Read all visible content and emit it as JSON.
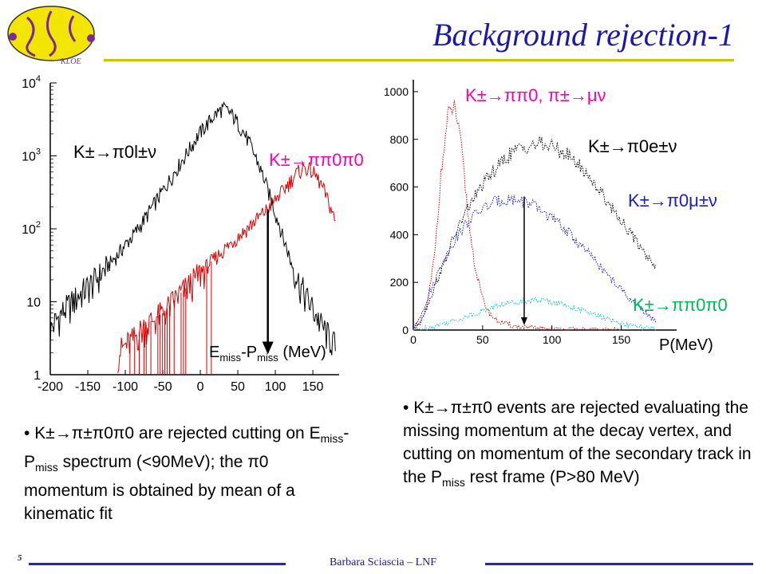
{
  "slide": {
    "title": "Background rejection-1",
    "page_number": "5",
    "author": "Barbara Sciascia – LNF",
    "logo_text": "KLOE"
  },
  "colors": {
    "title": "#1a1aa6",
    "accent_rule": "#c8c800",
    "footer_rule": "#2a2aa0",
    "black_series": "#000000",
    "red_series": "#dd0000",
    "blue_series": "#1a1ad0",
    "cyan_series": "#00cccc",
    "magenta_label": "#ff00aa"
  },
  "chart_data": [
    {
      "type": "line",
      "xlabel": "E_miss-P_miss (MeV)",
      "xlabel_main": "E",
      "xlabel_sub1": "miss",
      "xlabel_mid": "-P",
      "xlabel_sub2": "miss",
      "xlabel_unit": " (MeV)",
      "ylabel": "",
      "yscale": "log",
      "xlim": [
        -200,
        185
      ],
      "ylim": [
        1,
        10000
      ],
      "x_ticks": [
        "-200",
        "-150",
        "-100",
        "-50",
        "0",
        "50",
        "100",
        "150"
      ],
      "y_ticks": [
        {
          "base": "1",
          "exp": ""
        },
        {
          "base": "10",
          "exp": ""
        },
        {
          "base": "10",
          "exp": "2"
        },
        {
          "base": "10",
          "exp": "3"
        },
        {
          "base": "10",
          "exp": "4"
        }
      ],
      "series": [
        {
          "name": "K±→π0l±ν",
          "color": "#000000",
          "x": [
            -200,
            -190,
            -180,
            -170,
            -160,
            -150,
            -140,
            -130,
            -120,
            -110,
            -100,
            -90,
            -80,
            -70,
            -60,
            -50,
            -40,
            -30,
            -20,
            -10,
            0,
            10,
            20,
            30,
            40,
            50,
            60,
            70,
            80,
            90,
            100,
            110,
            120,
            130,
            140,
            150,
            160,
            170,
            180
          ],
          "y": [
            4,
            6,
            8,
            10,
            13,
            16,
            20,
            26,
            34,
            44,
            60,
            80,
            110,
            160,
            230,
            330,
            480,
            700,
            1000,
            1450,
            2100,
            2800,
            3700,
            4500,
            3900,
            2800,
            1900,
            1150,
            650,
            330,
            160,
            75,
            36,
            20,
            12,
            8,
            5,
            3.5,
            2.5
          ]
        },
        {
          "name": "K±→ππ0π0",
          "color": "#dd0000",
          "x": [
            -110,
            -100,
            -90,
            -80,
            -70,
            -60,
            -50,
            -40,
            -30,
            -20,
            -10,
            0,
            10,
            20,
            30,
            40,
            50,
            60,
            70,
            80,
            90,
            100,
            110,
            120,
            130,
            140,
            150,
            160,
            170,
            180
          ],
          "y": [
            2,
            2.5,
            3,
            4,
            5,
            6,
            7,
            9,
            12,
            15,
            19,
            25,
            32,
            40,
            50,
            62,
            78,
            95,
            120,
            150,
            190,
            250,
            330,
            450,
            600,
            700,
            600,
            420,
            240,
            120
          ]
        }
      ],
      "annotations": [
        {
          "text": "K±→π0l±ν"
        },
        {
          "text": "K±→ππ0π0"
        }
      ],
      "cut_arrow": {
        "x": 90,
        "y_from": 180,
        "y_to": 2
      }
    },
    {
      "type": "line",
      "xlabel": "P(MeV)",
      "ylabel": "",
      "xlim": [
        0,
        190
      ],
      "ylim": [
        0,
        1050
      ],
      "x_ticks": [
        "0",
        "50",
        "100",
        "150"
      ],
      "y_ticks": [
        "0",
        "200",
        "400",
        "600",
        "800",
        "1000"
      ],
      "series": [
        {
          "name": "K±→ππ0, π±→μν",
          "color": "#dd0000",
          "x": [
            0,
            5,
            10,
            15,
            20,
            25,
            30,
            35,
            40,
            45,
            50,
            55,
            60,
            70,
            80,
            100,
            120,
            150
          ],
          "y": [
            0,
            20,
            100,
            300,
            650,
            900,
            940,
            750,
            450,
            250,
            130,
            70,
            40,
            20,
            10,
            5,
            2,
            0
          ]
        },
        {
          "name": "K±→π0e±ν",
          "color": "#000000",
          "x": [
            0,
            5,
            10,
            20,
            30,
            40,
            50,
            60,
            70,
            80,
            90,
            100,
            110,
            120,
            130,
            140,
            150,
            160,
            170,
            175
          ],
          "y": [
            0,
            40,
            100,
            250,
            400,
            520,
            610,
            680,
            740,
            770,
            780,
            770,
            740,
            690,
            620,
            540,
            460,
            380,
            300,
            270
          ]
        },
        {
          "name": "K±→π0μ±ν",
          "color": "#1a1ad0",
          "x": [
            0,
            5,
            10,
            20,
            30,
            40,
            50,
            60,
            70,
            80,
            90,
            100,
            110,
            120,
            130,
            140,
            150,
            160,
            170,
            175
          ],
          "y": [
            0,
            60,
            130,
            270,
            380,
            460,
            510,
            540,
            550,
            540,
            510,
            470,
            420,
            360,
            300,
            230,
            170,
            110,
            60,
            40
          ]
        },
        {
          "name": "K±→ππ0π0",
          "color": "#00cccc",
          "x": [
            0,
            10,
            20,
            30,
            40,
            50,
            60,
            70,
            80,
            90,
            100,
            110,
            120,
            130,
            140,
            150,
            160,
            170,
            175
          ],
          "y": [
            0,
            10,
            25,
            40,
            60,
            80,
            100,
            115,
            125,
            125,
            120,
            105,
            85,
            65,
            45,
            28,
            15,
            6,
            3
          ]
        }
      ],
      "annotations": [
        {
          "text": "K±→ππ0, π±→μν"
        },
        {
          "text": "K±→π0e±ν"
        },
        {
          "text": "K±→π0μ±ν"
        },
        {
          "text": "K±→ππ0π0"
        }
      ],
      "cut_arrow": {
        "x": 80,
        "y_from": 560,
        "y_to": 20
      }
    }
  ],
  "bullets": {
    "left": {
      "marker": "•",
      "reaction": "K±→π±π0π0",
      "text1": " are rejected cutting on ",
      "emiss_e": "E",
      "emiss_sub": "miss",
      "emiss_p": "-P",
      "pmiss_sub": "miss",
      "text2": " spectrum (<90MeV); the ",
      "pi0": "π0",
      "text3": " momentum is obtained by mean of a kinematic fit"
    },
    "right": {
      "marker": "•",
      "reaction": "K±→π±π0",
      "text1": " events are rejected evaluating the missing momentum at the decay vertex, and cutting on momentum of the secondary track in the ",
      "p": "P",
      "p_sub": "miss",
      "text2": " rest frame (P>80 MeV)"
    }
  }
}
